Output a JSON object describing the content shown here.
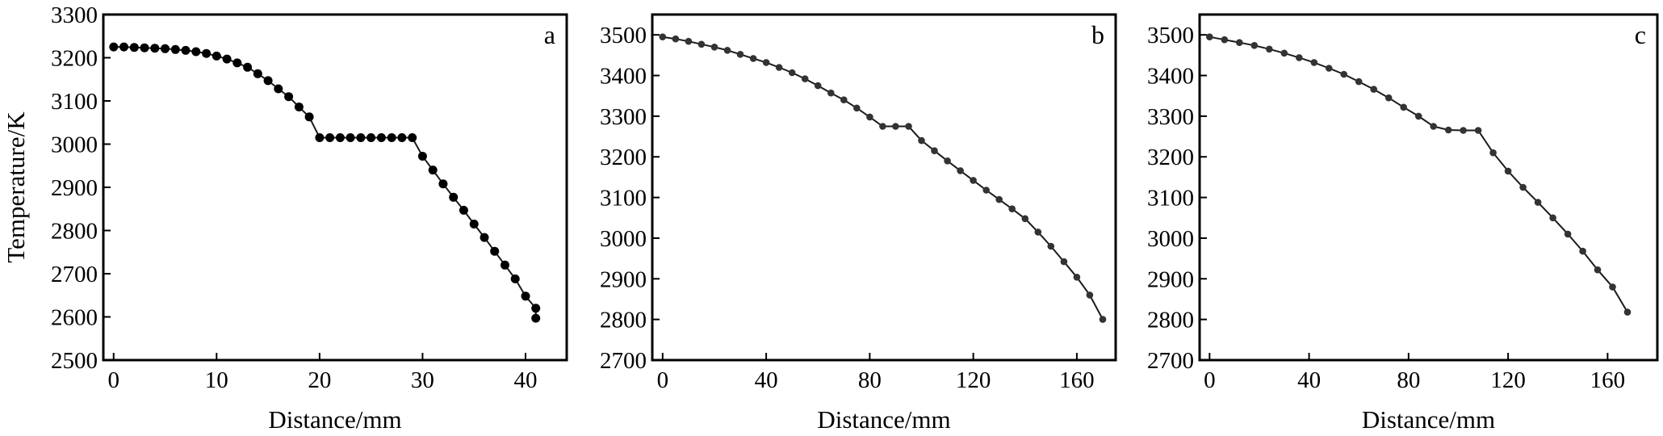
{
  "figure": {
    "ylabel": "Temperature/K"
  },
  "chart_data": [
    {
      "type": "line",
      "panel_label": "a",
      "xlabel": "Distance/mm",
      "ylabel": "Temperature/K",
      "xlim": [
        -1,
        44
      ],
      "ylim": [
        2500,
        3300
      ],
      "xticks": [
        0,
        10,
        20,
        30,
        40
      ],
      "yticks": [
        2500,
        2600,
        2700,
        2800,
        2900,
        3000,
        3100,
        3200,
        3300
      ],
      "grid": false,
      "marker_color": "#000000",
      "x": [
        0,
        1,
        2,
        3,
        4,
        5,
        6,
        7,
        8,
        9,
        10,
        11,
        12,
        13,
        14,
        15,
        16,
        17,
        18,
        19,
        20,
        21,
        22,
        23,
        24,
        25,
        26,
        27,
        28,
        29,
        30,
        31,
        32,
        33,
        34,
        35,
        36,
        37,
        38,
        39,
        40,
        41
      ],
      "y": [
        3225,
        3225,
        3224,
        3223,
        3222,
        3221,
        3219,
        3217,
        3214,
        3210,
        3204,
        3197,
        3188,
        3178,
        3163,
        3147,
        3128,
        3110,
        3086,
        3063,
        3015,
        3015,
        3015,
        3015,
        3015,
        3015,
        3015,
        3015,
        3015,
        3015,
        2972,
        2940,
        2908,
        2877,
        2847,
        2815,
        2784,
        2752,
        2720,
        2688,
        2648,
        2620
      ],
      "end_marker": {
        "x": 41,
        "y": 2597
      }
    },
    {
      "type": "line",
      "panel_label": "b",
      "xlabel": "Distance/mm",
      "ylabel": "",
      "xlim": [
        -4,
        175
      ],
      "ylim": [
        2700,
        3550
      ],
      "xticks": [
        0,
        40,
        80,
        120,
        160
      ],
      "yticks": [
        2700,
        2800,
        2900,
        3000,
        3100,
        3200,
        3300,
        3400,
        3500
      ],
      "grid": false,
      "marker_color": "#333333",
      "x": [
        0,
        5,
        10,
        15,
        20,
        25,
        30,
        35,
        40,
        45,
        50,
        55,
        60,
        65,
        70,
        75,
        80,
        85,
        90,
        95,
        100,
        105,
        110,
        115,
        120,
        125,
        130,
        135,
        140,
        145,
        150,
        155,
        160,
        165,
        170
      ],
      "y": [
        3495,
        3490,
        3484,
        3477,
        3470,
        3462,
        3452,
        3442,
        3432,
        3420,
        3407,
        3392,
        3375,
        3357,
        3340,
        3320,
        3298,
        3275,
        3275,
        3275,
        3240,
        3215,
        3190,
        3166,
        3142,
        3118,
        3095,
        3072,
        3048,
        3015,
        2980,
        2942,
        2904,
        2860,
        2800
      ]
    },
    {
      "type": "line",
      "panel_label": "c",
      "xlabel": "Distance/mm",
      "ylabel": "",
      "xlim": [
        -4,
        180
      ],
      "ylim": [
        2700,
        3550
      ],
      "xticks": [
        0,
        40,
        80,
        120,
        160
      ],
      "yticks": [
        2700,
        2800,
        2900,
        3000,
        3100,
        3200,
        3300,
        3400,
        3500
      ],
      "grid": false,
      "marker_color": "#333333",
      "x": [
        0,
        6,
        12,
        18,
        24,
        30,
        36,
        42,
        48,
        54,
        60,
        66,
        72,
        78,
        84,
        90,
        96,
        102,
        108,
        114,
        120,
        126,
        132,
        138,
        144,
        150,
        156,
        162,
        168
      ],
      "y": [
        3495,
        3488,
        3481,
        3474,
        3465,
        3455,
        3444,
        3432,
        3418,
        3403,
        3385,
        3366,
        3345,
        3322,
        3300,
        3275,
        3266,
        3265,
        3265,
        3210,
        3165,
        3125,
        3088,
        3050,
        3010,
        2968,
        2922,
        2880,
        2818
      ]
    }
  ]
}
